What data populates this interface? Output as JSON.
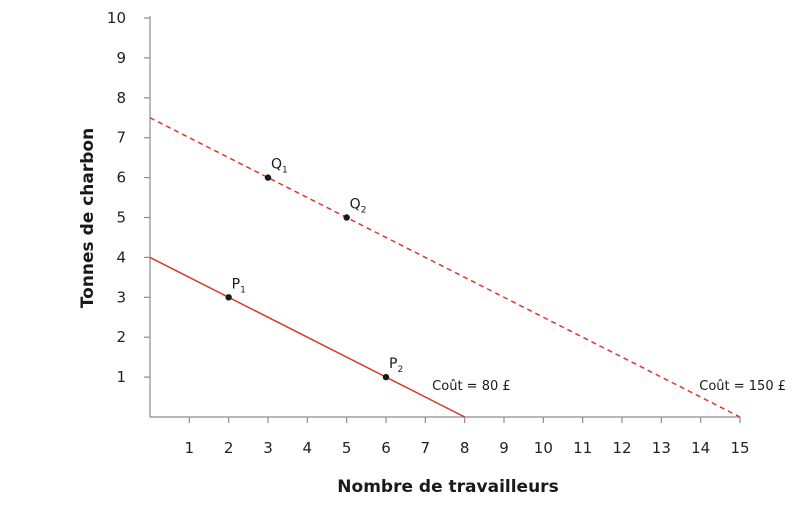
{
  "chart_data": {
    "type": "line",
    "xlabel": "Nombre de travailleurs",
    "ylabel": "Tonnes de charbon",
    "xlim": [
      0,
      15
    ],
    "ylim": [
      0,
      10
    ],
    "x_ticks": [
      1,
      2,
      3,
      4,
      5,
      6,
      7,
      8,
      9,
      10,
      11,
      12,
      13,
      14,
      15
    ],
    "y_ticks": [
      1,
      2,
      3,
      4,
      5,
      6,
      7,
      8,
      9,
      10
    ],
    "grid": false,
    "series": [
      {
        "label": "Coût = 80 £",
        "style": "solid",
        "color": "#d9372b",
        "x": [
          0,
          8
        ],
        "y": [
          4,
          0
        ],
        "label_at": [
          8,
          0.8
        ]
      },
      {
        "label": "Coût = 150 £",
        "style": "dashed",
        "color": "#d9372b",
        "x": [
          0,
          15
        ],
        "y": [
          7.5,
          0
        ],
        "label_at": [
          15,
          0.8
        ]
      }
    ],
    "points": [
      {
        "name": "P",
        "sub": "1",
        "x": 2,
        "y": 3
      },
      {
        "name": "P",
        "sub": "2",
        "x": 6,
        "y": 1
      },
      {
        "name": "Q",
        "sub": "1",
        "x": 3,
        "y": 6
      },
      {
        "name": "Q",
        "sub": "2",
        "x": 5,
        "y": 5
      }
    ],
    "point_color": "#1a1a1a",
    "axis_color": "#8c8c8c"
  }
}
